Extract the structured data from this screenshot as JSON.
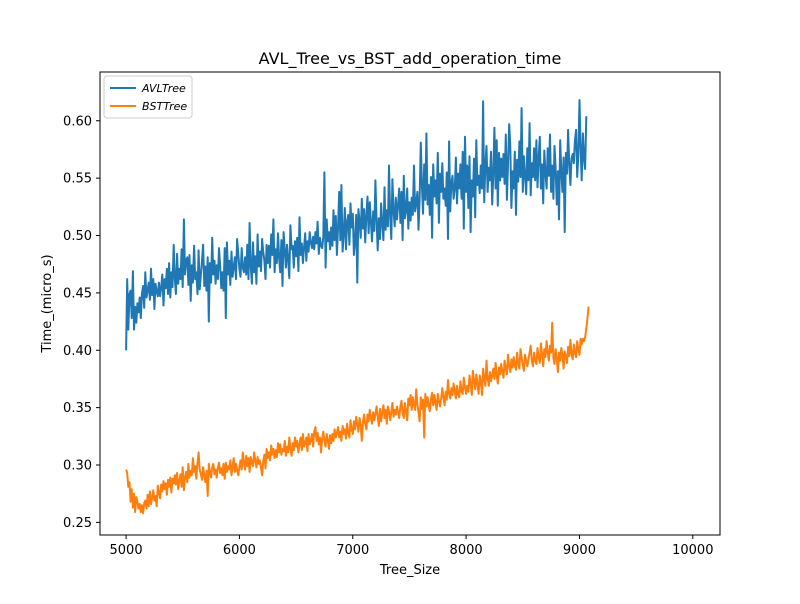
{
  "chart_data": {
    "type": "line",
    "title": "AVL_Tree_vs_BST_add_operation_time",
    "xlabel": "Tree_Size",
    "ylabel": "Time_(micro_s)",
    "xlim": [
      4770,
      10240
    ],
    "ylim": [
      0.239,
      0.6425
    ],
    "x_ticks": [
      5000,
      6000,
      7000,
      8000,
      9000,
      10000
    ],
    "x_tick_labels": [
      "5000",
      "6000",
      "7000",
      "8000",
      "9000",
      "10000"
    ],
    "y_ticks": [
      0.25,
      0.3,
      0.35,
      0.4,
      0.45,
      0.5,
      0.55,
      0.6
    ],
    "y_tick_labels": [
      "0.25",
      "0.30",
      "0.35",
      "0.40",
      "0.45",
      "0.50",
      "0.55",
      "0.60"
    ],
    "grid": false,
    "legend_position": "top-left",
    "series": [
      {
        "name": "AVLTree",
        "color": "#1f77b4",
        "x_start": 5000,
        "x_step": 10,
        "values": [
          0.4,
          0.462,
          0.418,
          0.449,
          0.452,
          0.428,
          0.469,
          0.418,
          0.438,
          0.424,
          0.441,
          0.433,
          0.446,
          0.428,
          0.449,
          0.456,
          0.437,
          0.468,
          0.446,
          0.452,
          0.459,
          0.444,
          0.471,
          0.448,
          0.462,
          0.436,
          0.458,
          0.451,
          0.447,
          0.459,
          0.447,
          0.455,
          0.466,
          0.439,
          0.462,
          0.454,
          0.471,
          0.449,
          0.476,
          0.446,
          0.468,
          0.455,
          0.492,
          0.463,
          0.449,
          0.484,
          0.458,
          0.471,
          0.462,
          0.488,
          0.455,
          0.514,
          0.466,
          0.478,
          0.481,
          0.457,
          0.483,
          0.443,
          0.474,
          0.459,
          0.491,
          0.462,
          0.468,
          0.449,
          0.487,
          0.453,
          0.466,
          0.478,
          0.492,
          0.456,
          0.473,
          0.452,
          0.481,
          0.425,
          0.476,
          0.459,
          0.498,
          0.466,
          0.478,
          0.458,
          0.474,
          0.462,
          0.489,
          0.474,
          0.454,
          0.468,
          0.452,
          0.489,
          0.428,
          0.494,
          0.466,
          0.478,
          0.457,
          0.486,
          0.464,
          0.472,
          0.481,
          0.462,
          0.497,
          0.484,
          0.471,
          0.464,
          0.489,
          0.472,
          0.468,
          0.481,
          0.466,
          0.492,
          0.462,
          0.511,
          0.474,
          0.458,
          0.494,
          0.468,
          0.482,
          0.458,
          0.501,
          0.473,
          0.486,
          0.469,
          0.497,
          0.486,
          0.478,
          0.462,
          0.492,
          0.476,
          0.491,
          0.472,
          0.501,
          0.483,
          0.514,
          0.468,
          0.488,
          0.476,
          0.502,
          0.481,
          0.468,
          0.496,
          0.456,
          0.503,
          0.487,
          0.472,
          0.492,
          0.478,
          0.463,
          0.509,
          0.488,
          0.491,
          0.472,
          0.495,
          0.482,
          0.498,
          0.469,
          0.516,
          0.483,
          0.493,
          0.476,
          0.489,
          0.502,
          0.478,
          0.495,
          0.486,
          0.503,
          0.494,
          0.489,
          0.499,
          0.488,
          0.503,
          0.493,
          0.512,
          0.484,
          0.498,
          0.491,
          0.489,
          0.499,
          0.555,
          0.472,
          0.514,
          0.495,
          0.503,
          0.488,
          0.507,
          0.491,
          0.522,
          0.496,
          0.517,
          0.483,
          0.506,
          0.538,
          0.496,
          0.544,
          0.486,
          0.501,
          0.524,
          0.488,
          0.512,
          0.518,
          0.492,
          0.528,
          0.507,
          0.519,
          0.483,
          0.495,
          0.518,
          0.459,
          0.523,
          0.512,
          0.498,
          0.532,
          0.506,
          0.523,
          0.494,
          0.518,
          0.534,
          0.502,
          0.529,
          0.512,
          0.495,
          0.521,
          0.504,
          0.548,
          0.513,
          0.487,
          0.515,
          0.497,
          0.528,
          0.511,
          0.496,
          0.542,
          0.505,
          0.522,
          0.508,
          0.561,
          0.516,
          0.497,
          0.549,
          0.521,
          0.508,
          0.533,
          0.514,
          0.527,
          0.541,
          0.511,
          0.538,
          0.496,
          0.552,
          0.515,
          0.521,
          0.541,
          0.506,
          0.529,
          0.513,
          0.533,
          0.518,
          0.561,
          0.521,
          0.528,
          0.538,
          0.505,
          0.531,
          0.581,
          0.544,
          0.519,
          0.562,
          0.531,
          0.589,
          0.527,
          0.544,
          0.518,
          0.551,
          0.498,
          0.562,
          0.534,
          0.548,
          0.528,
          0.572,
          0.511,
          0.554,
          0.538,
          0.563,
          0.532,
          0.541,
          0.526,
          0.555,
          0.497,
          0.582,
          0.521,
          0.546,
          0.552,
          0.532,
          0.541,
          0.568,
          0.528,
          0.554,
          0.541,
          0.562,
          0.532,
          0.573,
          0.506,
          0.586,
          0.538,
          0.561,
          0.524,
          0.569,
          0.503,
          0.548,
          0.534,
          0.567,
          0.516,
          0.583,
          0.544,
          0.552,
          0.537,
          0.561,
          0.541,
          0.617,
          0.529,
          0.562,
          0.578,
          0.538,
          0.559,
          0.548,
          0.573,
          0.527,
          0.554,
          0.594,
          0.541,
          0.583,
          0.526,
          0.572,
          0.548,
          0.567,
          0.551,
          0.571,
          0.545,
          0.588,
          0.531,
          0.562,
          0.597,
          0.578,
          0.524,
          0.556,
          0.541,
          0.573,
          0.518,
          0.566,
          0.547,
          0.582,
          0.551,
          0.611,
          0.538,
          0.569,
          0.553,
          0.536,
          0.576,
          0.548,
          0.598,
          0.535,
          0.563,
          0.551,
          0.576,
          0.548,
          0.583,
          0.542,
          0.567,
          0.586,
          0.541,
          0.562,
          0.528,
          0.574,
          0.556,
          0.541,
          0.576,
          0.552,
          0.588,
          0.538,
          0.561,
          0.532,
          0.578,
          0.559,
          0.527,
          0.556,
          0.514,
          0.583,
          0.556,
          0.538,
          0.568,
          0.503,
          0.572,
          0.554,
          0.592,
          0.561,
          0.544,
          0.567,
          0.571,
          0.563,
          0.582,
          0.592,
          0.551,
          0.569,
          0.618,
          0.576,
          0.548,
          0.589,
          0.567,
          0.558,
          0.604
        ]
      },
      {
        "name": "BSTTree",
        "color": "#ff7f0e",
        "x_start": 5000,
        "x_step": 10,
        "values": [
          0.296,
          0.293,
          0.281,
          0.285,
          0.268,
          0.279,
          0.263,
          0.275,
          0.259,
          0.272,
          0.268,
          0.262,
          0.266,
          0.259,
          0.265,
          0.258,
          0.267,
          0.269,
          0.262,
          0.274,
          0.264,
          0.277,
          0.266,
          0.271,
          0.278,
          0.269,
          0.273,
          0.264,
          0.282,
          0.276,
          0.271,
          0.283,
          0.277,
          0.286,
          0.279,
          0.284,
          0.274,
          0.287,
          0.281,
          0.289,
          0.276,
          0.288,
          0.284,
          0.291,
          0.283,
          0.293,
          0.279,
          0.286,
          0.292,
          0.281,
          0.298,
          0.278,
          0.289,
          0.294,
          0.285,
          0.301,
          0.289,
          0.295,
          0.291,
          0.306,
          0.294,
          0.299,
          0.288,
          0.302,
          0.311,
          0.296,
          0.292,
          0.287,
          0.298,
          0.291,
          0.285,
          0.295,
          0.273,
          0.301,
          0.294,
          0.289,
          0.298,
          0.301,
          0.292,
          0.296,
          0.289,
          0.298,
          0.302,
          0.293,
          0.297,
          0.291,
          0.301,
          0.288,
          0.302,
          0.294,
          0.299,
          0.296,
          0.304,
          0.291,
          0.299,
          0.306,
          0.294,
          0.301,
          0.295,
          0.291,
          0.298,
          0.304,
          0.296,
          0.311,
          0.303,
          0.296,
          0.308,
          0.299,
          0.306,
          0.294,
          0.307,
          0.302,
          0.299,
          0.311,
          0.304,
          0.298,
          0.307,
          0.301,
          0.304,
          0.298,
          0.291,
          0.303,
          0.309,
          0.297,
          0.314,
          0.306,
          0.311,
          0.304,
          0.317,
          0.309,
          0.314,
          0.306,
          0.313,
          0.307,
          0.319,
          0.311,
          0.318,
          0.309,
          0.314,
          0.312,
          0.321,
          0.308,
          0.316,
          0.311,
          0.324,
          0.314,
          0.308,
          0.319,
          0.313,
          0.324,
          0.316,
          0.321,
          0.311,
          0.318,
          0.324,
          0.313,
          0.327,
          0.316,
          0.319,
          0.324,
          0.312,
          0.327,
          0.318,
          0.321,
          0.327,
          0.316,
          0.329,
          0.333,
          0.321,
          0.328,
          0.318,
          0.324,
          0.311,
          0.323,
          0.329,
          0.321,
          0.316,
          0.327,
          0.322,
          0.314,
          0.326,
          0.319,
          0.327,
          0.321,
          0.331,
          0.324,
          0.328,
          0.333,
          0.324,
          0.329,
          0.321,
          0.334,
          0.327,
          0.331,
          0.323,
          0.336,
          0.329,
          0.324,
          0.339,
          0.331,
          0.327,
          0.338,
          0.331,
          0.342,
          0.336,
          0.329,
          0.341,
          0.334,
          0.321,
          0.338,
          0.344,
          0.336,
          0.331,
          0.344,
          0.338,
          0.348,
          0.341,
          0.336,
          0.346,
          0.339,
          0.344,
          0.351,
          0.342,
          0.334,
          0.349,
          0.338,
          0.345,
          0.352,
          0.341,
          0.348,
          0.336,
          0.351,
          0.347,
          0.339,
          0.346,
          0.354,
          0.342,
          0.348,
          0.344,
          0.351,
          0.346,
          0.341,
          0.351,
          0.356,
          0.345,
          0.341,
          0.354,
          0.347,
          0.339,
          0.358,
          0.352,
          0.361,
          0.348,
          0.359,
          0.352,
          0.348,
          0.366,
          0.353,
          0.346,
          0.338,
          0.359,
          0.349,
          0.357,
          0.324,
          0.362,
          0.351,
          0.359,
          0.351,
          0.347,
          0.358,
          0.363,
          0.352,
          0.361,
          0.354,
          0.348,
          0.362,
          0.356,
          0.351,
          0.358,
          0.367,
          0.359,
          0.352,
          0.364,
          0.357,
          0.374,
          0.362,
          0.358,
          0.367,
          0.361,
          0.371,
          0.364,
          0.358,
          0.369,
          0.362,
          0.359,
          0.373,
          0.364,
          0.362,
          0.376,
          0.368,
          0.362,
          0.369,
          0.364,
          0.378,
          0.371,
          0.361,
          0.382,
          0.374,
          0.366,
          0.379,
          0.371,
          0.362,
          0.378,
          0.373,
          0.361,
          0.384,
          0.376,
          0.369,
          0.391,
          0.376,
          0.369,
          0.381,
          0.373,
          0.378,
          0.384,
          0.375,
          0.389,
          0.378,
          0.371,
          0.385,
          0.379,
          0.388,
          0.381,
          0.376,
          0.391,
          0.384,
          0.379,
          0.396,
          0.386,
          0.381,
          0.392,
          0.385,
          0.394,
          0.387,
          0.383,
          0.398,
          0.389,
          0.384,
          0.401,
          0.394,
          0.387,
          0.382,
          0.396,
          0.391,
          0.386,
          0.392,
          0.398,
          0.404,
          0.391,
          0.386,
          0.398,
          0.391,
          0.388,
          0.402,
          0.394,
          0.389,
          0.406,
          0.397,
          0.386,
          0.401,
          0.394,
          0.408,
          0.398,
          0.391,
          0.404,
          0.398,
          0.424,
          0.393,
          0.388,
          0.401,
          0.392,
          0.381,
          0.398,
          0.391,
          0.402,
          0.396,
          0.384,
          0.399,
          0.394,
          0.389,
          0.403,
          0.395,
          0.409,
          0.397,
          0.392,
          0.405,
          0.398,
          0.394,
          0.408,
          0.401,
          0.396,
          0.41,
          0.405,
          0.41,
          0.408,
          0.411,
          0.419,
          0.427,
          0.438
        ]
      }
    ]
  }
}
